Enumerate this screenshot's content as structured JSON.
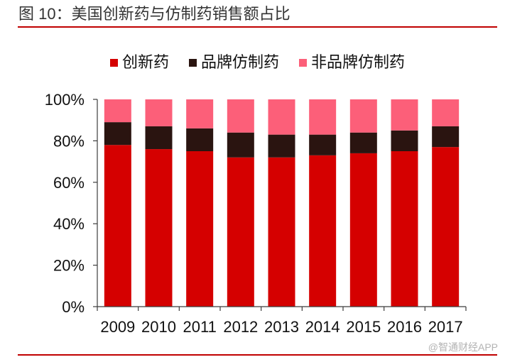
{
  "chart_data": {
    "type": "bar",
    "stacked": true,
    "title": "图 10：美国创新药与仿制药销售额占比",
    "categories": [
      "2009",
      "2010",
      "2011",
      "2012",
      "2013",
      "2014",
      "2015",
      "2016",
      "2017"
    ],
    "series": [
      {
        "name": "创新药",
        "color": "#d50000",
        "values": [
          78,
          76,
          75,
          72,
          72,
          73,
          74,
          75,
          77
        ]
      },
      {
        "name": "品牌仿制药",
        "color": "#2a1410",
        "values": [
          11,
          11,
          11,
          12,
          11,
          10,
          10,
          10,
          10
        ]
      },
      {
        "name": "非品牌仿制药",
        "color": "#fc5f79",
        "values": [
          11,
          13,
          14,
          16,
          17,
          17,
          16,
          15,
          13
        ]
      }
    ],
    "ylim": [
      0,
      100
    ],
    "yticks": [
      {
        "value": 0,
        "label": "0%"
      },
      {
        "value": 20,
        "label": "20%"
      },
      {
        "value": 40,
        "label": "40%"
      },
      {
        "value": 60,
        "label": "60%"
      },
      {
        "value": 80,
        "label": "80%"
      },
      {
        "value": 100,
        "label": "100%"
      }
    ],
    "grid": false,
    "legend_position": "top"
  },
  "watermark": "@智通财经APP",
  "colors": {
    "rule_line": "#c00000",
    "axis": "#3c3c3c"
  }
}
